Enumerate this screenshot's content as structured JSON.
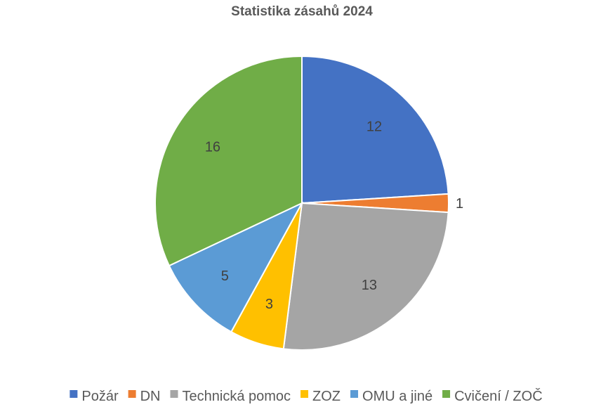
{
  "chart_data": {
    "type": "pie",
    "title": "Statistika zásahů 2024",
    "categories": [
      "Požár",
      "DN",
      "Technická pomoc",
      "ZOZ",
      "OMU a jiné",
      "Cvičení / ZOČ"
    ],
    "values": [
      12,
      1,
      13,
      3,
      5,
      16
    ],
    "colors": [
      "#4472C4",
      "#ED7D31",
      "#A5A5A5",
      "#FFC000",
      "#5B9BD5",
      "#70AD47"
    ],
    "start_angle": "12 o'clock",
    "direction": "clockwise",
    "data_labels": true,
    "legend_position": "bottom"
  }
}
